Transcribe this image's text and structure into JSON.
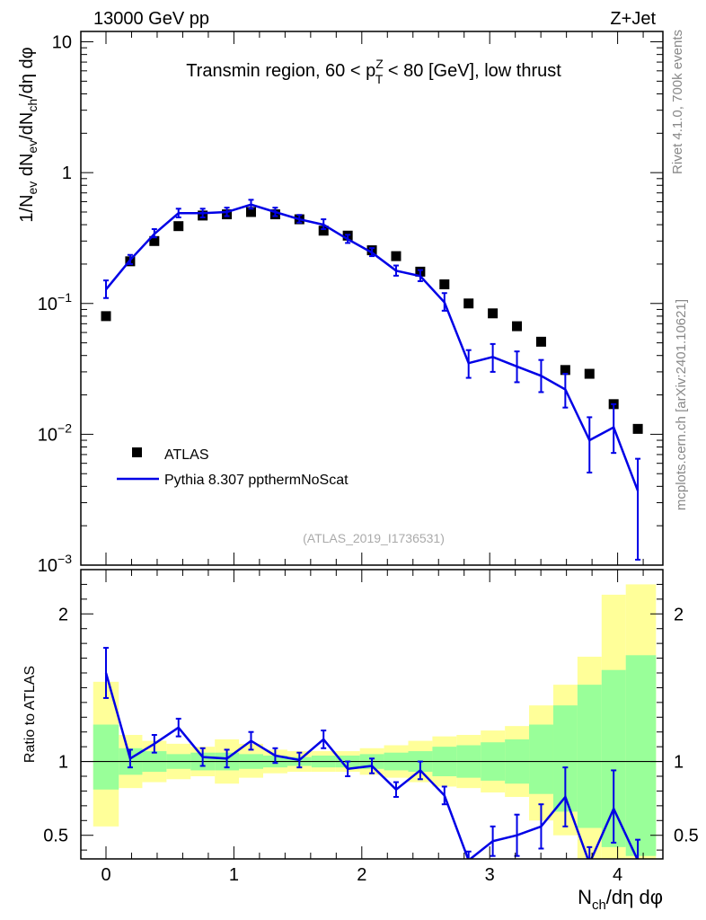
{
  "header": {
    "energy_label": "13000 GeV pp",
    "process_label": "Z+Jet"
  },
  "side_text": {
    "rivet": "Rivet 4.1.0,  700k events",
    "mcplots": "mcplots.cern.ch [arXiv:2401.10621]"
  },
  "colors": {
    "mc_line": "#0000e6",
    "data_marker": "#000000",
    "band_inner": "#99ff99",
    "band_outer": "#ffff99",
    "side_text": "#888888",
    "analysis_label": "#aaaaaa"
  },
  "chart_data": [
    {
      "type": "line",
      "panel": "main",
      "title": "Transmin region, 60 < p_T^Z < 80 [GeV], low thrust",
      "ylabel": "1/N_ev dN_ev/dN_ch/dη dφ",
      "yscale": "log",
      "xlim": [
        -0.2,
        4.32
      ],
      "ylim": [
        0.001,
        12
      ],
      "y_ticks": [
        {
          "value": 10,
          "label": "10"
        },
        {
          "value": 1,
          "label": "1"
        },
        {
          "value": 0.1,
          "label": "10^-1",
          "base": "10",
          "exp": "−1"
        },
        {
          "value": 0.01,
          "label": "10^-2",
          "base": "10",
          "exp": "−2"
        },
        {
          "value": 0.001,
          "label": "10^-3",
          "base": "10",
          "exp": "−3"
        }
      ],
      "analysis_id": "(ATLAS_2019_I1736531)",
      "legend": {
        "position": "bottom-left",
        "entries": [
          "ATLAS",
          "Pythia 8.307 ppthermNoScat"
        ]
      },
      "series": [
        {
          "name": "ATLAS",
          "style": "marker",
          "x": [
            0.0,
            0.189,
            0.378,
            0.567,
            0.756,
            0.945,
            1.134,
            1.323,
            1.512,
            1.701,
            1.89,
            2.079,
            2.268,
            2.457,
            2.646,
            2.835,
            3.024,
            3.213,
            3.402,
            3.591,
            3.78,
            3.969,
            4.158
          ],
          "y": [
            0.08,
            0.21,
            0.3,
            0.39,
            0.47,
            0.48,
            0.5,
            0.48,
            0.44,
            0.36,
            0.33,
            0.255,
            0.23,
            0.175,
            0.14,
            0.1,
            0.084,
            0.067,
            0.051,
            0.031,
            0.029,
            0.017,
            0.011
          ]
        },
        {
          "name": "Pythia 8.307 ppthermNoScat",
          "style": "line",
          "x": [
            0.0,
            0.189,
            0.378,
            0.567,
            0.756,
            0.945,
            1.134,
            1.323,
            1.512,
            1.701,
            1.89,
            2.079,
            2.268,
            2.457,
            2.646,
            2.835,
            3.024,
            3.213,
            3.402,
            3.591,
            3.78,
            3.969,
            4.158
          ],
          "y": [
            0.128,
            0.215,
            0.34,
            0.49,
            0.49,
            0.5,
            0.57,
            0.5,
            0.44,
            0.4,
            0.31,
            0.245,
            0.178,
            0.162,
            0.102,
            0.035,
            0.039,
            0.033,
            0.028,
            0.022,
            0.009,
            0.0113,
            0.0037
          ],
          "y_err_low": [
            0.11,
            0.2,
            0.32,
            0.455,
            0.455,
            0.465,
            0.53,
            0.465,
            0.415,
            0.37,
            0.29,
            0.23,
            0.163,
            0.148,
            0.088,
            0.027,
            0.03,
            0.025,
            0.021,
            0.016,
            0.0051,
            0.0072,
            0.0011
          ],
          "y_err_high": [
            0.15,
            0.235,
            0.37,
            0.53,
            0.53,
            0.54,
            0.62,
            0.54,
            0.475,
            0.44,
            0.335,
            0.265,
            0.195,
            0.18,
            0.12,
            0.044,
            0.049,
            0.043,
            0.037,
            0.029,
            0.0135,
            0.017,
            0.0065
          ]
        }
      ]
    },
    {
      "type": "line",
      "panel": "ratio",
      "ylabel": "Ratio to ATLAS",
      "xlabel": "N_ch/dη dφ",
      "xlim": [
        -0.2,
        4.32
      ],
      "ylim": [
        0.34,
        2.3
      ],
      "x_ticks": [
        0,
        1,
        2,
        3,
        4
      ],
      "y_ticks": [
        0.5,
        1,
        2
      ],
      "reference_line": 1,
      "bands": {
        "edges": [
          -0.1,
          0.1,
          0.284,
          0.473,
          0.662,
          0.851,
          1.04,
          1.229,
          1.418,
          1.607,
          1.796,
          1.985,
          2.174,
          2.363,
          2.552,
          2.741,
          2.93,
          3.119,
          3.308,
          3.497,
          3.686,
          3.875,
          4.064,
          4.3
        ],
        "inner": [
          [
            0.81,
            1.25
          ],
          [
            0.91,
            1.09
          ],
          [
            0.93,
            1.07
          ],
          [
            0.95,
            1.05
          ],
          [
            0.94,
            1.06
          ],
          [
            0.94,
            1.06
          ],
          [
            0.95,
            1.05
          ],
          [
            0.96,
            1.04
          ],
          [
            0.97,
            1.03
          ],
          [
            0.96,
            1.04
          ],
          [
            0.96,
            1.04
          ],
          [
            0.95,
            1.05
          ],
          [
            0.94,
            1.06
          ],
          [
            0.93,
            1.07
          ],
          [
            0.9,
            1.1
          ],
          [
            0.89,
            1.11
          ],
          [
            0.87,
            1.13
          ],
          [
            0.85,
            1.15
          ],
          [
            0.78,
            1.25
          ],
          [
            0.66,
            1.38
          ],
          [
            0.55,
            1.52
          ],
          [
            0.42,
            1.62
          ],
          [
            0.36,
            1.72
          ]
        ],
        "outer": [
          [
            0.56,
            1.54
          ],
          [
            0.82,
            1.18
          ],
          [
            0.86,
            1.14
          ],
          [
            0.88,
            1.12
          ],
          [
            0.9,
            1.1
          ],
          [
            0.85,
            1.15
          ],
          [
            0.89,
            1.12
          ],
          [
            0.92,
            1.08
          ],
          [
            0.93,
            1.07
          ],
          [
            0.93,
            1.07
          ],
          [
            0.93,
            1.07
          ],
          [
            0.91,
            1.09
          ],
          [
            0.89,
            1.11
          ],
          [
            0.86,
            1.14
          ],
          [
            0.83,
            1.17
          ],
          [
            0.82,
            1.18
          ],
          [
            0.79,
            1.21
          ],
          [
            0.76,
            1.24
          ],
          [
            0.6,
            1.38
          ],
          [
            0.5,
            1.52
          ],
          [
            0.34,
            1.71
          ],
          [
            0.34,
            2.13
          ],
          [
            0.34,
            2.2
          ]
        ]
      },
      "series": [
        {
          "name": "Pythia 8.307 ppthermNoScat / ATLAS",
          "x": [
            0.0,
            0.189,
            0.378,
            0.567,
            0.756,
            0.945,
            1.134,
            1.323,
            1.512,
            1.701,
            1.89,
            2.079,
            2.268,
            2.457,
            2.646,
            2.835,
            3.024,
            3.213,
            3.402,
            3.591,
            3.78,
            3.969,
            4.158
          ],
          "y": [
            1.6,
            1.02,
            1.12,
            1.23,
            1.03,
            1.02,
            1.14,
            1.04,
            1.01,
            1.15,
            0.95,
            0.97,
            0.81,
            0.94,
            0.77,
            0.33,
            0.46,
            0.5,
            0.56,
            0.76,
            0.31,
            0.68,
            0.33
          ],
          "y_err_low": [
            1.43,
            0.96,
            1.06,
            1.17,
            0.97,
            0.96,
            1.08,
            0.99,
            0.96,
            1.09,
            0.9,
            0.92,
            0.76,
            0.88,
            0.71,
            0.28,
            0.36,
            0.36,
            0.41,
            0.56,
            0.22,
            0.45,
            0.22
          ],
          "y_err_high": [
            1.77,
            1.08,
            1.18,
            1.29,
            1.09,
            1.08,
            1.2,
            1.09,
            1.06,
            1.21,
            1.0,
            1.02,
            0.86,
            1.0,
            0.83,
            0.39,
            0.56,
            0.64,
            0.71,
            0.96,
            0.42,
            0.94,
            0.47
          ]
        }
      ]
    }
  ]
}
